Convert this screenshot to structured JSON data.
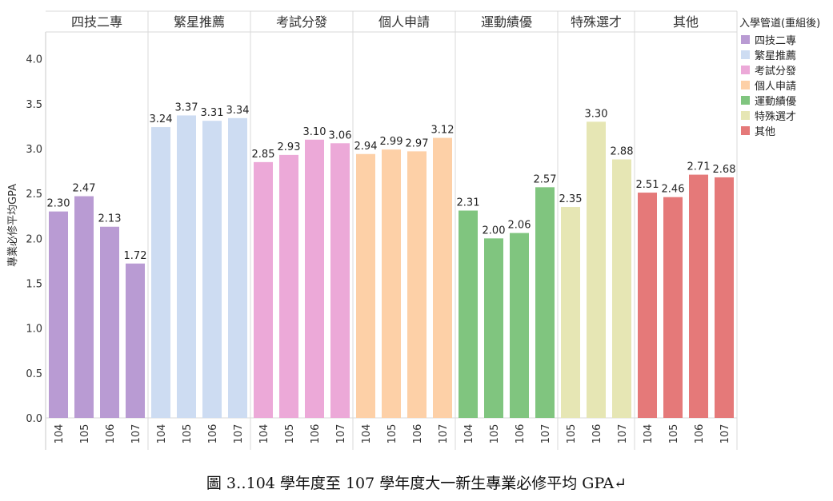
{
  "chart_data": {
    "type": "bar",
    "ylabel": "專業必修平均GPA",
    "ylim": [
      0,
      4.3
    ],
    "yticks": [
      "0.0",
      "0.5",
      "1.0",
      "1.5",
      "2.0",
      "2.5",
      "3.0",
      "3.5",
      "4.0"
    ],
    "grid": false,
    "legend": {
      "title": "入學管道(重組後)",
      "placement": "right"
    },
    "groups": [
      {
        "name": "四技二專",
        "color": "#b99bd3",
        "categories": [
          "104",
          "105",
          "106",
          "107"
        ],
        "values": [
          2.3,
          2.47,
          2.13,
          1.72
        ],
        "labels": [
          "2.30",
          "2.47",
          "2.13",
          "1.72"
        ]
      },
      {
        "name": "繁星推薦",
        "color": "#cddcf2",
        "categories": [
          "104",
          "105",
          "106",
          "107"
        ],
        "values": [
          3.24,
          3.37,
          3.31,
          3.34
        ],
        "labels": [
          "3.24",
          "3.37",
          "3.31",
          "3.34"
        ]
      },
      {
        "name": "考試分發",
        "color": "#eca9d8",
        "categories": [
          "104",
          "105",
          "106",
          "107"
        ],
        "values": [
          2.85,
          2.93,
          3.1,
          3.06
        ],
        "labels": [
          "2.85",
          "2.93",
          "3.10",
          "3.06"
        ]
      },
      {
        "name": "個人申請",
        "color": "#fdd0a7",
        "categories": [
          "104",
          "105",
          "106",
          "107"
        ],
        "values": [
          2.94,
          2.99,
          2.97,
          3.12
        ],
        "labels": [
          "2.94",
          "2.99",
          "2.97",
          "3.12"
        ]
      },
      {
        "name": "運動績優",
        "color": "#80c57f",
        "categories": [
          "104",
          "105",
          "106",
          "107"
        ],
        "values": [
          2.31,
          2.0,
          2.06,
          2.57
        ],
        "labels": [
          "2.31",
          "2.00",
          "2.06",
          "2.57"
        ]
      },
      {
        "name": "特殊選才",
        "color": "#e6e6b4",
        "categories": [
          "105",
          "106",
          "107"
        ],
        "values": [
          2.35,
          3.3,
          2.88
        ],
        "labels": [
          "2.35",
          "3.30",
          "2.88"
        ]
      },
      {
        "name": "其他",
        "color": "#e57979",
        "categories": [
          "104",
          "105",
          "106",
          "107"
        ],
        "values": [
          2.51,
          2.46,
          2.71,
          2.68
        ],
        "labels": [
          "2.51",
          "2.46",
          "2.71",
          "2.68"
        ]
      }
    ]
  },
  "caption": "圖 3‥104 學年度至 107 學年度大一新生專業必修平均 GPA↵"
}
